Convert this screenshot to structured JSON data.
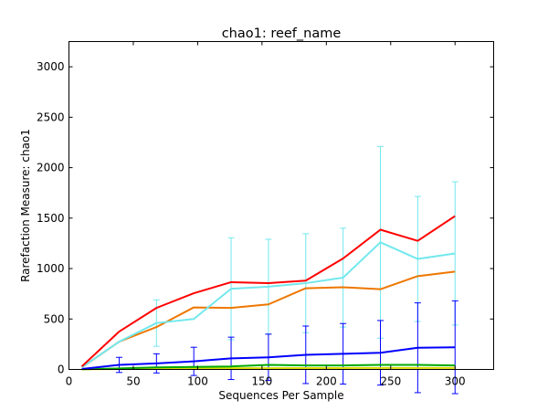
{
  "chart_data": {
    "type": "line",
    "title": "chao1: reef_name",
    "xlabel": "Sequences Per Sample",
    "ylabel": "Rarefaction Measure: chao1",
    "xlim": [
      0,
      330
    ],
    "ylim": [
      0,
      3250
    ],
    "xticks": [
      0,
      50,
      100,
      150,
      200,
      250,
      300
    ],
    "yticks": [
      0,
      500,
      1000,
      1500,
      2000,
      2500,
      3000
    ],
    "grid": false,
    "legend": "none",
    "x": [
      10,
      39,
      68,
      97,
      126,
      155,
      184,
      213,
      242,
      271,
      300
    ],
    "series": [
      {
        "color": "#ff0000",
        "values": [
          30,
          375,
          610,
          755,
          865,
          855,
          880,
          1100,
          1385,
          1275,
          1520
        ],
        "err": []
      },
      {
        "color": "#72e8ed",
        "values": [
          20,
          275,
          460,
          500,
          800,
          820,
          855,
          910,
          1260,
          1095,
          1150
        ],
        "err": [
          0,
          0,
          230,
          0,
          505,
          470,
          490,
          490,
          950,
          620,
          710
        ]
      },
      {
        "color": "#ee7700",
        "values": [
          20,
          275,
          420,
          615,
          610,
          645,
          805,
          815,
          795,
          925,
          970
        ],
        "err": []
      },
      {
        "color": "#0000ff",
        "values": [
          5,
          45,
          60,
          80,
          110,
          120,
          145,
          155,
          165,
          215,
          220
        ],
        "err": [
          0,
          75,
          95,
          140,
          210,
          230,
          285,
          300,
          320,
          445,
          460
        ]
      },
      {
        "color": "#00aa00",
        "values": [
          2,
          10,
          20,
          25,
          30,
          45,
          40,
          40,
          45,
          45,
          40
        ],
        "err": []
      },
      {
        "color": "#dddd00",
        "values": [
          1,
          5,
          8,
          10,
          12,
          12,
          14,
          14,
          15,
          15,
          15
        ],
        "err": []
      }
    ]
  }
}
